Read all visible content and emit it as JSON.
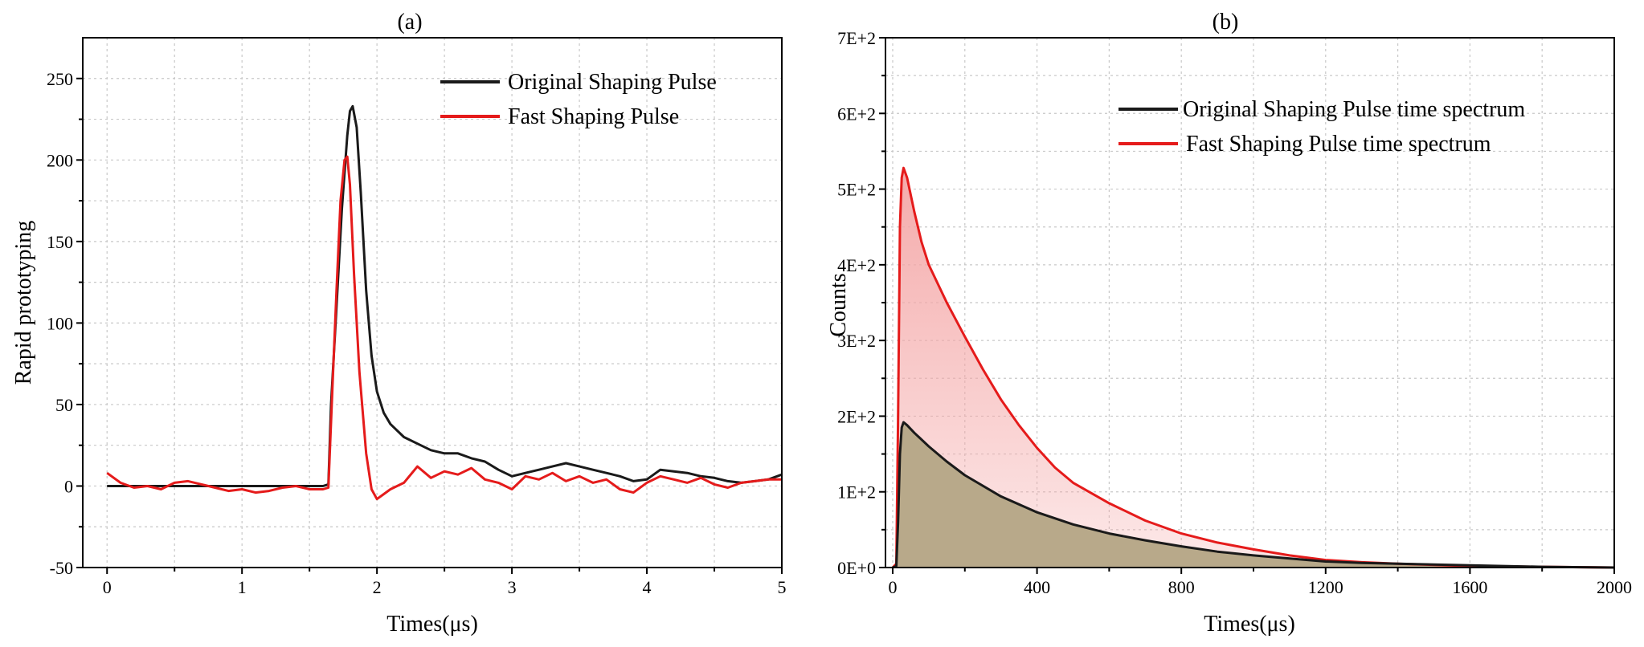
{
  "chart_data": [
    {
      "panel_label": "(a)",
      "type": "line",
      "xlabel": "Times(μs)",
      "ylabel": "Rapid prototyping",
      "xlim": [
        -0.18,
        5
      ],
      "ylim": [
        -50,
        275
      ],
      "xticks": [
        0,
        1,
        2,
        3,
        4,
        5
      ],
      "xtick_labels": [
        "0",
        "1",
        "2",
        "3",
        "4",
        "5"
      ],
      "yticks": [
        -50,
        0,
        50,
        100,
        150,
        200,
        250
      ],
      "ytick_labels": [
        "-50",
        "0",
        "50",
        "100",
        "150",
        "200",
        "250"
      ],
      "grid": true,
      "legend_position": "top-right",
      "series": [
        {
          "name": "Original Shaping Pulse",
          "color": "#1a1a1a",
          "points": [
            [
              0,
              0
            ],
            [
              1.6,
              0
            ],
            [
              1.64,
              1
            ],
            [
              1.66,
              50
            ],
            [
              1.7,
              110
            ],
            [
              1.74,
              170
            ],
            [
              1.78,
              215
            ],
            [
              1.8,
              230
            ],
            [
              1.82,
              233
            ],
            [
              1.85,
              220
            ],
            [
              1.88,
              180
            ],
            [
              1.92,
              120
            ],
            [
              1.96,
              80
            ],
            [
              2.0,
              58
            ],
            [
              2.05,
              45
            ],
            [
              2.1,
              38
            ],
            [
              2.2,
              30
            ],
            [
              2.3,
              26
            ],
            [
              2.4,
              22
            ],
            [
              2.5,
              20
            ],
            [
              2.6,
              20
            ],
            [
              2.7,
              17
            ],
            [
              2.8,
              15
            ],
            [
              2.9,
              10
            ],
            [
              3.0,
              6
            ],
            [
              3.1,
              8
            ],
            [
              3.2,
              10
            ],
            [
              3.3,
              12
            ],
            [
              3.4,
              14
            ],
            [
              3.5,
              12
            ],
            [
              3.6,
              10
            ],
            [
              3.7,
              8
            ],
            [
              3.8,
              6
            ],
            [
              3.9,
              3
            ],
            [
              4.0,
              4
            ],
            [
              4.1,
              10
            ],
            [
              4.2,
              9
            ],
            [
              4.3,
              8
            ],
            [
              4.4,
              6
            ],
            [
              4.5,
              5
            ],
            [
              4.6,
              3
            ],
            [
              4.7,
              2
            ],
            [
              4.8,
              3
            ],
            [
              4.9,
              4
            ],
            [
              5.0,
              7
            ]
          ]
        },
        {
          "name": "Fast Shaping Pulse",
          "color": "#e51b1b",
          "points": [
            [
              0,
              8
            ],
            [
              0.1,
              2
            ],
            [
              0.2,
              -1
            ],
            [
              0.3,
              0
            ],
            [
              0.4,
              -2
            ],
            [
              0.5,
              2
            ],
            [
              0.6,
              3
            ],
            [
              0.7,
              1
            ],
            [
              0.8,
              -1
            ],
            [
              0.9,
              -3
            ],
            [
              1.0,
              -2
            ],
            [
              1.1,
              -4
            ],
            [
              1.2,
              -3
            ],
            [
              1.3,
              -1
            ],
            [
              1.4,
              0
            ],
            [
              1.5,
              -2
            ],
            [
              1.6,
              -2
            ],
            [
              1.64,
              -1
            ],
            [
              1.67,
              60
            ],
            [
              1.7,
              120
            ],
            [
              1.73,
              175
            ],
            [
              1.76,
              200
            ],
            [
              1.78,
              202
            ],
            [
              1.8,
              185
            ],
            [
              1.83,
              130
            ],
            [
              1.87,
              70
            ],
            [
              1.92,
              20
            ],
            [
              1.96,
              -2
            ],
            [
              2.0,
              -8
            ],
            [
              2.05,
              -5
            ],
            [
              2.1,
              -2
            ],
            [
              2.2,
              2
            ],
            [
              2.3,
              12
            ],
            [
              2.4,
              5
            ],
            [
              2.5,
              9
            ],
            [
              2.6,
              7
            ],
            [
              2.7,
              11
            ],
            [
              2.8,
              4
            ],
            [
              2.9,
              2
            ],
            [
              3.0,
              -2
            ],
            [
              3.1,
              6
            ],
            [
              3.2,
              4
            ],
            [
              3.3,
              8
            ],
            [
              3.4,
              3
            ],
            [
              3.5,
              6
            ],
            [
              3.6,
              2
            ],
            [
              3.7,
              4
            ],
            [
              3.8,
              -2
            ],
            [
              3.9,
              -4
            ],
            [
              4.0,
              2
            ],
            [
              4.1,
              6
            ],
            [
              4.2,
              4
            ],
            [
              4.3,
              2
            ],
            [
              4.4,
              5
            ],
            [
              4.5,
              1
            ],
            [
              4.6,
              -1
            ],
            [
              4.7,
              2
            ],
            [
              4.8,
              3
            ],
            [
              4.9,
              4
            ],
            [
              5.0,
              4
            ]
          ]
        }
      ]
    },
    {
      "panel_label": "(b)",
      "type": "area",
      "xlabel": "Times(μs)",
      "ylabel": "Counts",
      "xlim": [
        -20,
        2000
      ],
      "ylim": [
        0,
        700
      ],
      "xticks": [
        0,
        400,
        800,
        1200,
        1600,
        2000
      ],
      "xtick_labels": [
        "0",
        "400",
        "800",
        "1200",
        "1600",
        "2000"
      ],
      "yticks": [
        0,
        100,
        200,
        300,
        400,
        500,
        600,
        700
      ],
      "ytick_labels": [
        "0E+0",
        "1E+2",
        "2E+2",
        "3E+2",
        "4E+2",
        "5E+2",
        "6E+2",
        "7E+2"
      ],
      "grid": true,
      "legend_position": "top-right",
      "series": [
        {
          "name": "Original Shaping Pulse time spectrum",
          "color": "#1a1a1a",
          "fill": "#b8a98a",
          "points": [
            [
              0,
              0
            ],
            [
              10,
              2
            ],
            [
              15,
              60
            ],
            [
              20,
              150
            ],
            [
              25,
              185
            ],
            [
              30,
              192
            ],
            [
              40,
              188
            ],
            [
              60,
              178
            ],
            [
              100,
              160
            ],
            [
              150,
              140
            ],
            [
              200,
              122
            ],
            [
              300,
              94
            ],
            [
              400,
              73
            ],
            [
              500,
              57
            ],
            [
              600,
              45
            ],
            [
              700,
              36
            ],
            [
              800,
              28
            ],
            [
              900,
              21
            ],
            [
              1000,
              16
            ],
            [
              1100,
              12
            ],
            [
              1200,
              8
            ],
            [
              1300,
              6
            ],
            [
              1400,
              5
            ],
            [
              1600,
              3
            ],
            [
              1800,
              1
            ],
            [
              2000,
              0
            ]
          ]
        },
        {
          "name": "Fast Shaping Pulse time spectrum",
          "color": "#e51b1b",
          "fill": "#f4a6a6",
          "points": [
            [
              0,
              0
            ],
            [
              10,
              5
            ],
            [
              15,
              200
            ],
            [
              20,
              450
            ],
            [
              25,
              515
            ],
            [
              30,
              528
            ],
            [
              40,
              515
            ],
            [
              60,
              470
            ],
            [
              80,
              430
            ],
            [
              100,
              400
            ],
            [
              150,
              350
            ],
            [
              200,
              305
            ],
            [
              250,
              262
            ],
            [
              300,
              222
            ],
            [
              350,
              188
            ],
            [
              400,
              158
            ],
            [
              450,
              132
            ],
            [
              500,
              112
            ],
            [
              600,
              85
            ],
            [
              700,
              62
            ],
            [
              800,
              45
            ],
            [
              900,
              33
            ],
            [
              1000,
              24
            ],
            [
              1100,
              16
            ],
            [
              1200,
              10
            ],
            [
              1300,
              7
            ],
            [
              1400,
              5
            ],
            [
              1600,
              2
            ],
            [
              1800,
              1
            ],
            [
              2000,
              0
            ]
          ]
        }
      ]
    }
  ]
}
